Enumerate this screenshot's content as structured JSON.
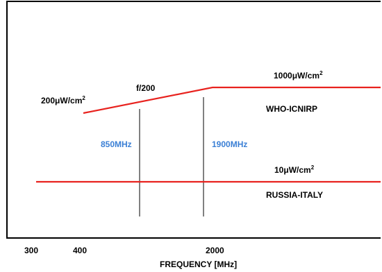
{
  "chart_data": {
    "type": "line",
    "xlabel": "FREQUENCY  [MHz]",
    "x_ticks": [
      "300",
      "400",
      "2000"
    ],
    "series": [
      {
        "name": "WHO-ICNIRP",
        "points": [
          {
            "x": 400,
            "y": 200
          },
          {
            "x": 2000,
            "y": 1000
          },
          {
            "x": 3000,
            "y": 1000
          }
        ],
        "color": "#e8221e"
      },
      {
        "name": "RUSSIA-ITALY",
        "points": [
          {
            "x": 300,
            "y": 10
          },
          {
            "x": 3000,
            "y": 10
          }
        ],
        "color": "#e8221e"
      }
    ],
    "vlines": [
      {
        "label": "850MHz"
      },
      {
        "label": "1900MHz"
      }
    ],
    "annotations": {
      "low_limit": {
        "value": "200",
        "unit": "μW/cm",
        "sup": "2"
      },
      "slope": "f/200",
      "high_limit": {
        "value": "1000",
        "unit": "μW/cm",
        "sup": "2"
      },
      "flat_limit": {
        "value": "10",
        "unit": "μW/cm",
        "sup": "2"
      }
    },
    "grid": false,
    "line_color": "#e8221e",
    "label_color_blue": "#3a7fd5"
  }
}
